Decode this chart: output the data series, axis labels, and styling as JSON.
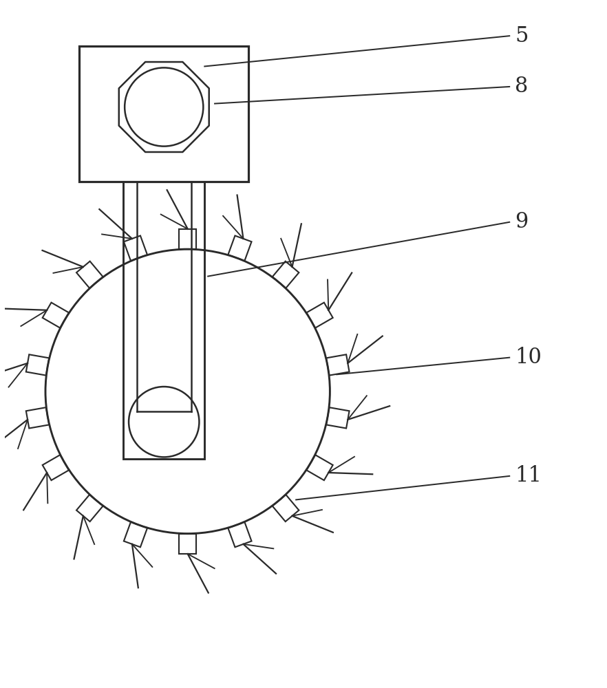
{
  "background_color": "#ffffff",
  "line_color": "#2a2a2a",
  "line_width": 1.8,
  "fig_width": 8.82,
  "fig_height": 10.0,
  "n_teeth": 18,
  "label_fontsize": 22
}
